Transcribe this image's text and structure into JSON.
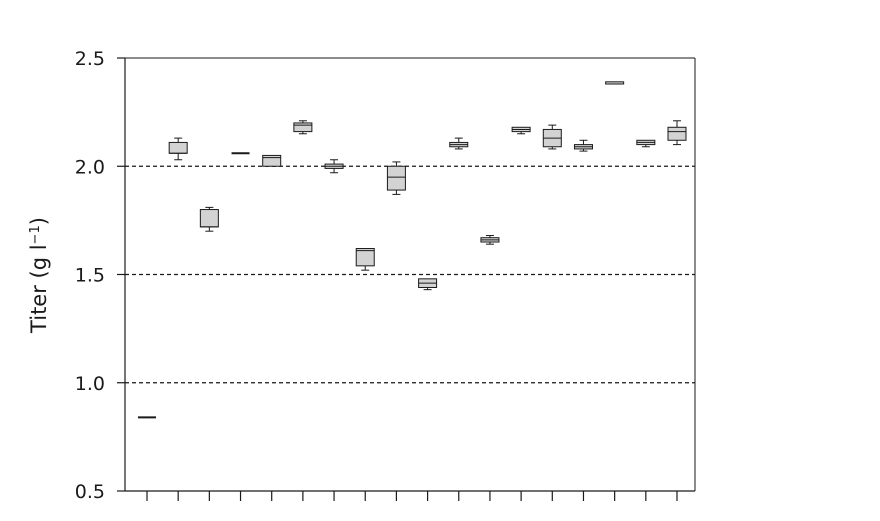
{
  "chart_data": {
    "type": "box",
    "ylabel": "Titer (g l",
    "ylabel_superscript": "−1",
    "ylabel_close": ")",
    "ylim": [
      0.5,
      2.5
    ],
    "yticks": [
      0.5,
      1.0,
      1.5,
      2.0,
      2.5
    ],
    "ytick_labels": [
      "0.5",
      "1.0",
      "1.5",
      "2.0",
      "2.5"
    ],
    "reference_lines": [
      1.0,
      1.5,
      2.0
    ],
    "x_ticks_count": 18,
    "box_fill": "#d3d3d3",
    "line_color": "#1a1a1a",
    "boxes": [
      {
        "min": 0.84,
        "q1": 0.84,
        "median": 0.84,
        "q3": 0.84,
        "max": 0.84
      },
      {
        "min": 2.03,
        "q1": 2.06,
        "median": 2.06,
        "q3": 2.11,
        "max": 2.13
      },
      {
        "min": 1.7,
        "q1": 1.72,
        "median": 1.72,
        "q3": 1.8,
        "max": 1.81
      },
      {
        "min": 2.06,
        "q1": 2.06,
        "median": 2.06,
        "q3": 2.06,
        "max": 2.06
      },
      {
        "min": 2.0,
        "q1": 2.0,
        "median": 2.04,
        "q3": 2.05,
        "max": 2.05
      },
      {
        "min": 2.15,
        "q1": 2.16,
        "median": 2.19,
        "q3": 2.2,
        "max": 2.21
      },
      {
        "min": 1.97,
        "q1": 1.99,
        "median": 2.0,
        "q3": 2.01,
        "max": 2.03
      },
      {
        "min": 1.52,
        "q1": 1.54,
        "median": 1.61,
        "q3": 1.62,
        "max": 1.62
      },
      {
        "min": 1.87,
        "q1": 1.89,
        "median": 1.95,
        "q3": 2.0,
        "max": 2.02
      },
      {
        "min": 1.43,
        "q1": 1.44,
        "median": 1.46,
        "q3": 1.48,
        "max": 1.48
      },
      {
        "min": 2.08,
        "q1": 2.09,
        "median": 2.1,
        "q3": 2.11,
        "max": 2.13
      },
      {
        "min": 1.64,
        "q1": 1.65,
        "median": 1.66,
        "q3": 1.67,
        "max": 1.68
      },
      {
        "min": 2.15,
        "q1": 2.16,
        "median": 2.17,
        "q3": 2.18,
        "max": 2.18
      },
      {
        "min": 2.08,
        "q1": 2.09,
        "median": 2.13,
        "q3": 2.17,
        "max": 2.19
      },
      {
        "min": 2.07,
        "q1": 2.08,
        "median": 2.09,
        "q3": 2.1,
        "max": 2.12
      },
      {
        "min": 2.38,
        "q1": 2.38,
        "median": 2.38,
        "q3": 2.39,
        "max": 2.39
      },
      {
        "min": 2.09,
        "q1": 2.1,
        "median": 2.11,
        "q3": 2.12,
        "max": 2.12
      },
      {
        "min": 2.1,
        "q1": 2.12,
        "median": 2.16,
        "q3": 2.18,
        "max": 2.21
      }
    ]
  }
}
